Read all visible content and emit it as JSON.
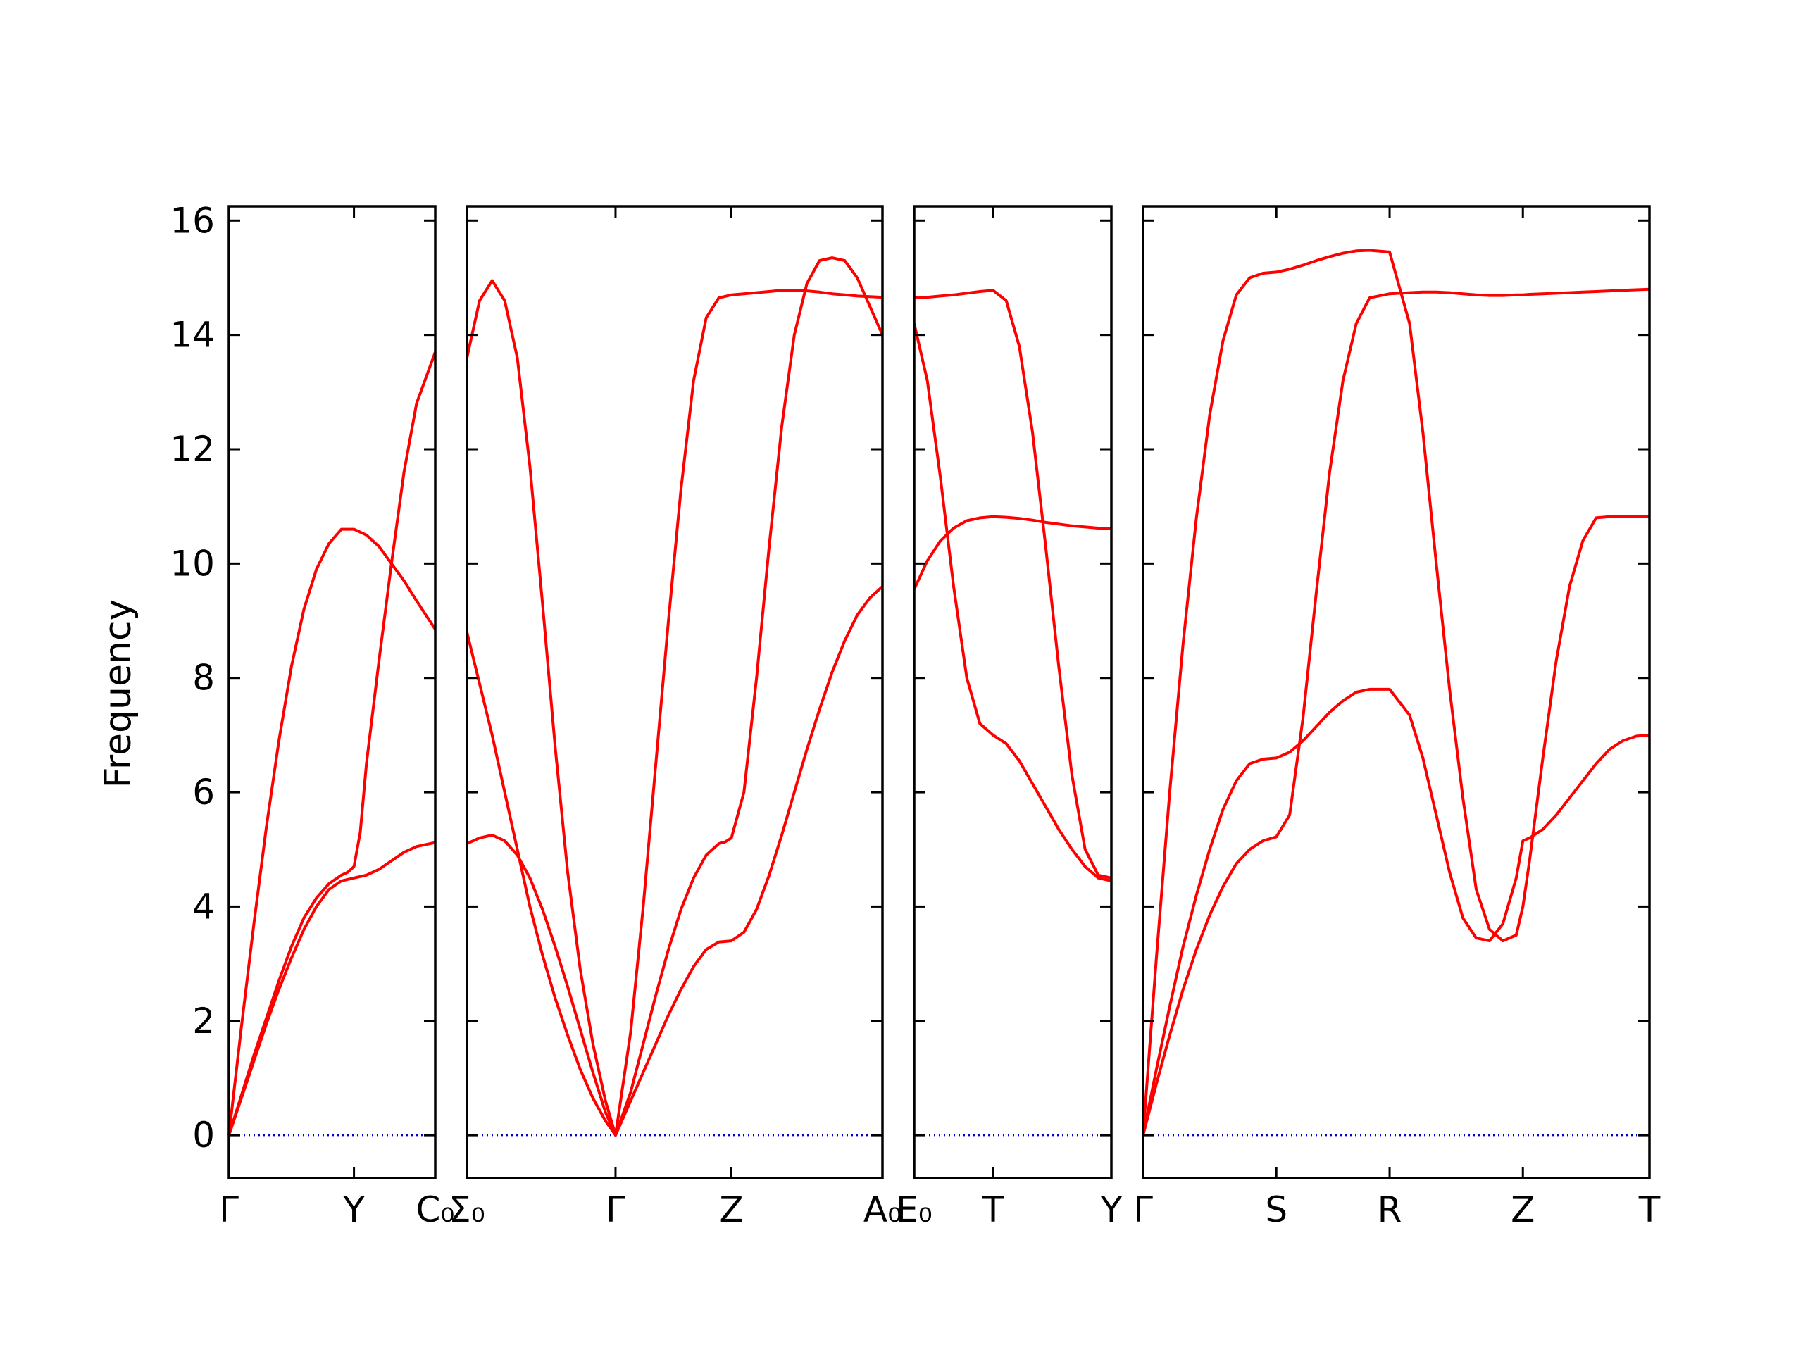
{
  "chart_data": {
    "type": "line",
    "ylabel": "Frequency",
    "ylim": [
      -0.75,
      16.25
    ],
    "yticks": [
      0,
      2,
      4,
      6,
      8,
      10,
      12,
      14,
      16
    ],
    "grid": false,
    "colors": {
      "bands": "#ff0000",
      "zero_line": "#0000cc"
    },
    "tick_labels": [
      "Γ",
      "Y",
      "C₀",
      "Σ₀",
      "Γ",
      "Z",
      "A₀",
      "E₀",
      "T",
      "Y",
      "Γ",
      "S",
      "R",
      "Z",
      "T"
    ],
    "panels": [
      {
        "xticks": [
          0,
          1,
          1.65
        ],
        "xlabels": [
          "Γ",
          "Y",
          "C₀"
        ],
        "series": [
          {
            "x": [
              0,
              0.1,
              0.2,
              0.3,
              0.4,
              0.5,
              0.6,
              0.7,
              0.8,
              0.9,
              1.0,
              1.1,
              1.2,
              1.3,
              1.4,
              1.5,
              1.65
            ],
            "values": [
              0,
              0.65,
              1.3,
              1.95,
              2.55,
              3.1,
              3.6,
              4.0,
              4.3,
              4.45,
              4.5,
              4.55,
              4.65,
              4.8,
              4.95,
              5.05,
              5.12
            ]
          },
          {
            "x": [
              0,
              0.1,
              0.2,
              0.3,
              0.4,
              0.5,
              0.6,
              0.7,
              0.8,
              0.9,
              0.95,
              1.0,
              1.05,
              1.1,
              1.2,
              1.3,
              1.4,
              1.5,
              1.65
            ],
            "values": [
              0,
              0.7,
              1.4,
              2.05,
              2.7,
              3.3,
              3.8,
              4.15,
              4.4,
              4.55,
              4.6,
              4.7,
              5.3,
              6.5,
              8.3,
              10.0,
              11.6,
              12.8,
              13.7
            ]
          },
          {
            "x": [
              0,
              0.1,
              0.2,
              0.3,
              0.4,
              0.5,
              0.6,
              0.7,
              0.8,
              0.9,
              1.0,
              1.1,
              1.2,
              1.3,
              1.4,
              1.5,
              1.65
            ],
            "values": [
              0,
              1.9,
              3.7,
              5.4,
              6.9,
              8.2,
              9.2,
              9.9,
              10.35,
              10.6,
              10.6,
              10.5,
              10.3,
              10.0,
              9.7,
              9.35,
              8.85
            ]
          }
        ]
      },
      {
        "xticks": [
          0,
          1.18,
          2.1,
          3.3
        ],
        "xlabels": [
          "Σ₀",
          "Γ",
          "Z",
          "A₀"
        ],
        "series": [
          {
            "x": [
              0,
              0.1,
              0.2,
              0.3,
              0.4,
              0.5,
              0.6,
              0.7,
              0.8,
              0.9,
              1.0,
              1.1,
              1.18,
              1.3,
              1.4,
              1.5,
              1.6,
              1.7,
              1.8,
              1.9,
              2.0,
              2.1,
              2.2,
              2.3,
              2.4,
              2.5,
              2.6,
              2.7,
              2.8,
              2.9,
              3.0,
              3.1,
              3.2,
              3.3
            ],
            "values": [
              5.1,
              5.2,
              5.25,
              5.15,
              4.9,
              4.5,
              3.95,
              3.3,
              2.6,
              1.85,
              1.1,
              0.4,
              0,
              0.6,
              1.1,
              1.6,
              2.1,
              2.55,
              2.95,
              3.25,
              3.38,
              3.4,
              3.55,
              3.95,
              4.55,
              5.25,
              6.0,
              6.75,
              7.45,
              8.1,
              8.65,
              9.1,
              9.4,
              9.6
            ]
          },
          {
            "x": [
              0,
              0.1,
              0.2,
              0.3,
              0.4,
              0.5,
              0.6,
              0.7,
              0.8,
              0.9,
              1.0,
              1.1,
              1.18,
              1.3,
              1.4,
              1.5,
              1.6,
              1.7,
              1.8,
              1.9,
              2.0,
              2.05,
              2.1,
              2.2,
              2.3,
              2.4,
              2.5,
              2.6,
              2.7,
              2.8,
              2.9,
              3.0,
              3.1,
              3.2,
              3.3
            ],
            "values": [
              8.8,
              7.9,
              7.0,
              6.0,
              5.0,
              4.0,
              3.15,
              2.4,
              1.75,
              1.15,
              0.65,
              0.25,
              0,
              0.75,
              1.6,
              2.45,
              3.25,
              3.95,
              4.5,
              4.9,
              5.1,
              5.13,
              5.2,
              6.0,
              8.0,
              10.3,
              12.4,
              14.0,
              14.9,
              15.3,
              15.35,
              15.3,
              15.0,
              14.5,
              14.0
            ]
          },
          {
            "x": [
              0,
              0.1,
              0.2,
              0.3,
              0.4,
              0.5,
              0.6,
              0.7,
              0.8,
              0.9,
              1.0,
              1.1,
              1.18,
              1.3,
              1.4,
              1.5,
              1.6,
              1.7,
              1.8,
              1.9,
              2.0,
              2.1,
              2.2,
              2.3,
              2.4,
              2.5,
              2.6,
              2.7,
              2.8,
              2.9,
              3.0,
              3.1,
              3.2,
              3.3
            ],
            "values": [
              13.6,
              14.6,
              14.95,
              14.6,
              13.6,
              11.7,
              9.3,
              6.8,
              4.6,
              2.9,
              1.6,
              0.6,
              0,
              1.8,
              4.0,
              6.5,
              9.0,
              11.3,
              13.2,
              14.3,
              14.65,
              14.7,
              14.72,
              14.74,
              14.76,
              14.78,
              14.78,
              14.77,
              14.75,
              14.72,
              14.7,
              14.68,
              14.67,
              14.66
            ]
          }
        ]
      },
      {
        "xticks": [
          0,
          0.6,
          1.5
        ],
        "xlabels": [
          "E₀",
          "T",
          "Y"
        ],
        "series": [
          {
            "x": [
              0,
              0.1,
              0.2,
              0.3,
              0.4,
              0.5,
              0.6,
              0.7,
              0.8,
              0.9,
              1.0,
              1.1,
              1.2,
              1.3,
              1.4,
              1.5
            ],
            "values": [
              14.2,
              13.2,
              11.5,
              9.6,
              8.0,
              7.2,
              7.0,
              6.85,
              6.55,
              6.15,
              5.75,
              5.35,
              5.0,
              4.7,
              4.5,
              4.45
            ]
          },
          {
            "x": [
              0,
              0.1,
              0.2,
              0.3,
              0.4,
              0.5,
              0.6,
              0.7,
              0.8,
              0.9,
              1.0,
              1.1,
              1.2,
              1.3,
              1.4,
              1.5
            ],
            "values": [
              9.55,
              10.05,
              10.4,
              10.62,
              10.75,
              10.8,
              10.82,
              10.81,
              10.79,
              10.76,
              10.72,
              10.69,
              10.66,
              10.64,
              10.62,
              10.61
            ]
          },
          {
            "x": [
              0,
              0.1,
              0.2,
              0.3,
              0.4,
              0.5,
              0.6,
              0.7,
              0.8,
              0.9,
              1.0,
              1.1,
              1.2,
              1.3,
              1.4,
              1.5
            ],
            "values": [
              14.65,
              14.66,
              14.68,
              14.7,
              14.73,
              14.76,
              14.78,
              14.6,
              13.8,
              12.3,
              10.3,
              8.2,
              6.3,
              5.0,
              4.55,
              4.5
            ]
          }
        ]
      },
      {
        "xticks": [
          0,
          1,
          1.85,
          2.85,
          3.8
        ],
        "xlabels": [
          "Γ",
          "S",
          "R",
          "Z",
          "T"
        ],
        "series": [
          {
            "x": [
              0,
              0.1,
              0.2,
              0.3,
              0.4,
              0.5,
              0.6,
              0.7,
              0.8,
              0.9,
              1.0,
              1.1,
              1.2,
              1.3,
              1.4,
              1.5,
              1.6,
              1.7,
              1.85,
              2.0,
              2.1,
              2.2,
              2.3,
              2.4,
              2.5,
              2.6,
              2.7,
              2.8,
              2.85,
              2.9,
              3.0,
              3.1,
              3.2,
              3.3,
              3.4,
              3.5,
              3.6,
              3.7,
              3.8
            ],
            "values": [
              0,
              0.9,
              1.75,
              2.55,
              3.25,
              3.85,
              4.35,
              4.75,
              5.0,
              5.15,
              5.22,
              5.6,
              7.3,
              9.5,
              11.6,
              13.2,
              14.2,
              14.65,
              14.72,
              14.74,
              14.75,
              14.75,
              14.74,
              14.72,
              14.7,
              14.69,
              14.69,
              14.7,
              14.7,
              14.71,
              14.72,
              14.73,
              14.74,
              14.75,
              14.76,
              14.77,
              14.78,
              14.79,
              14.8
            ]
          },
          {
            "x": [
              0,
              0.1,
              0.2,
              0.3,
              0.4,
              0.5,
              0.6,
              0.7,
              0.8,
              0.9,
              1.0,
              1.1,
              1.2,
              1.3,
              1.4,
              1.5,
              1.6,
              1.7,
              1.85,
              2.0,
              2.1,
              2.2,
              2.3,
              2.4,
              2.5,
              2.6,
              2.7,
              2.8,
              2.85,
              2.9,
              3.0,
              3.1,
              3.2,
              3.3,
              3.4,
              3.5,
              3.6,
              3.7,
              3.8
            ],
            "values": [
              0,
              1.15,
              2.25,
              3.3,
              4.2,
              5.0,
              5.7,
              6.2,
              6.5,
              6.58,
              6.6,
              6.7,
              6.9,
              7.15,
              7.4,
              7.6,
              7.75,
              7.8,
              7.8,
              7.35,
              6.6,
              5.6,
              4.6,
              3.8,
              3.45,
              3.4,
              3.7,
              4.5,
              5.15,
              5.2,
              5.35,
              5.6,
              5.9,
              6.2,
              6.5,
              6.75,
              6.9,
              6.98,
              7.0
            ]
          },
          {
            "x": [
              0,
              0.1,
              0.2,
              0.3,
              0.4,
              0.5,
              0.6,
              0.7,
              0.8,
              0.9,
              1.0,
              1.1,
              1.2,
              1.3,
              1.4,
              1.5,
              1.6,
              1.7,
              1.85,
              2.0,
              2.1,
              2.2,
              2.3,
              2.4,
              2.5,
              2.6,
              2.7,
              2.8,
              2.85,
              2.9,
              3.0,
              3.1,
              3.2,
              3.3,
              3.4,
              3.5,
              3.6,
              3.7,
              3.8
            ],
            "values": [
              0,
              3.1,
              6.0,
              8.6,
              10.8,
              12.6,
              13.9,
              14.7,
              15.0,
              15.08,
              15.1,
              15.15,
              15.22,
              15.3,
              15.37,
              15.43,
              15.47,
              15.48,
              15.45,
              14.2,
              12.3,
              10.0,
              7.8,
              5.9,
              4.3,
              3.6,
              3.4,
              3.5,
              4.0,
              4.8,
              6.6,
              8.3,
              9.6,
              10.4,
              10.8,
              10.82,
              10.82,
              10.82,
              10.82
            ]
          }
        ]
      }
    ]
  }
}
